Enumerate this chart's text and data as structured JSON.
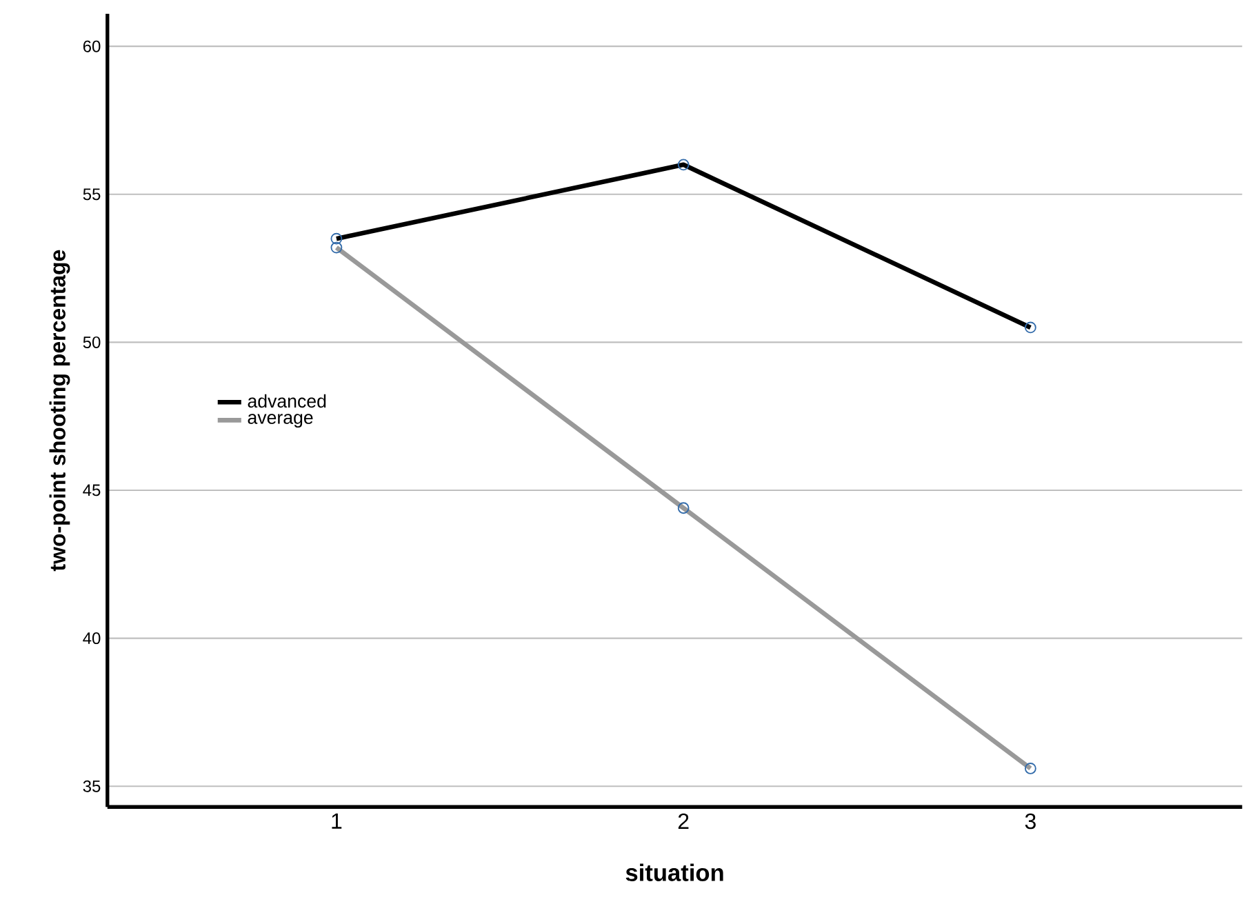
{
  "chart_data": {
    "type": "line",
    "xlabel": "situation",
    "ylabel": "two-point shooting percentage",
    "categories": [
      "1",
      "2",
      "3"
    ],
    "series": [
      {
        "name": "advanced",
        "color": "#000000",
        "values": [
          53.5,
          56.0,
          50.5
        ]
      },
      {
        "name": "average",
        "color": "#999999",
        "values": [
          53.2,
          44.4,
          35.6
        ]
      }
    ],
    "ylim": [
      34.3,
      61.1
    ],
    "yticks": [
      35,
      40,
      45,
      50,
      55,
      60
    ],
    "grid": "y",
    "legend": "left",
    "marker": "circle",
    "line_style": "solid"
  }
}
